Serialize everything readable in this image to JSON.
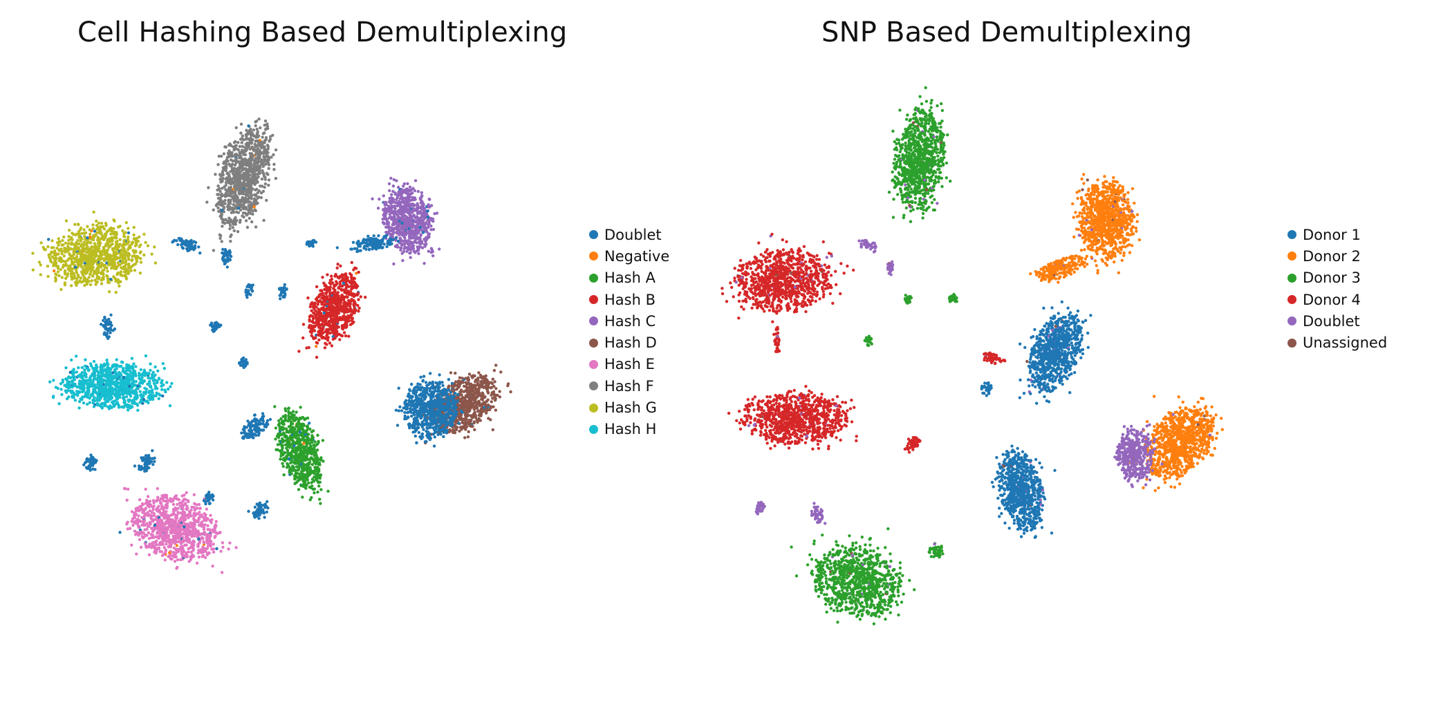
{
  "chart_data": [
    {
      "type": "scatter",
      "title": "Cell Hashing Based Demultiplexing",
      "xlabel": "",
      "ylabel": "",
      "axes_visible": false,
      "grid": false,
      "legend_position": "right",
      "legend": [
        {
          "name": "Doublet",
          "color": "#1f77b4"
        },
        {
          "name": "Negative",
          "color": "#ff7f0e"
        },
        {
          "name": "Hash A",
          "color": "#2ca02c"
        },
        {
          "name": "Hash B",
          "color": "#d62728"
        },
        {
          "name": "Hash C",
          "color": "#9467bd"
        },
        {
          "name": "Hash D",
          "color": "#8c564b"
        },
        {
          "name": "Hash E",
          "color": "#e377c2"
        },
        {
          "name": "Hash F",
          "color": "#7f7f7f"
        },
        {
          "name": "Hash G",
          "color": "#bcbd22"
        },
        {
          "name": "Hash H",
          "color": "#17becf"
        }
      ],
      "clusters": [
        {
          "label": "Hash F",
          "center": [
            0.38,
            0.16
          ],
          "spread": [
            0.04,
            0.085
          ],
          "tilt": 15
        },
        {
          "label": "Hash C",
          "center": [
            0.67,
            0.23
          ],
          "spread": [
            0.042,
            0.055
          ],
          "tilt": -10
        },
        {
          "label": "Hash G",
          "center": [
            0.12,
            0.29
          ],
          "spread": [
            0.08,
            0.048
          ],
          "tilt": -8
        },
        {
          "label": "Hash B",
          "center": [
            0.54,
            0.38
          ],
          "spread": [
            0.036,
            0.06
          ],
          "tilt": 25
        },
        {
          "label": "Hash H",
          "center": [
            0.15,
            0.51
          ],
          "spread": [
            0.085,
            0.037
          ],
          "tilt": 2
        },
        {
          "label": "Hash D",
          "center": [
            0.77,
            0.54
          ],
          "spread": [
            0.04,
            0.06
          ],
          "tilt": 55
        },
        {
          "label": "Hash A",
          "center": [
            0.48,
            0.62
          ],
          "spread": [
            0.032,
            0.065
          ],
          "tilt": -20
        },
        {
          "label": "Hash E",
          "center": [
            0.26,
            0.75
          ],
          "spread": [
            0.075,
            0.05
          ],
          "tilt": 20
        },
        {
          "label": "Doublet",
          "center": [
            0.28,
            0.27
          ],
          "spread": [
            0.02,
            0.01
          ],
          "tilt": 20
        },
        {
          "label": "Doublet",
          "center": [
            0.35,
            0.29
          ],
          "spread": [
            0.008,
            0.016
          ],
          "tilt": 0
        },
        {
          "label": "Doublet",
          "center": [
            0.14,
            0.41
          ],
          "spread": [
            0.008,
            0.02
          ],
          "tilt": 0
        },
        {
          "label": "Doublet",
          "center": [
            0.11,
            0.64
          ],
          "spread": [
            0.012,
            0.012
          ],
          "tilt": 0
        },
        {
          "label": "Doublet",
          "center": [
            0.21,
            0.64
          ],
          "spread": [
            0.012,
            0.016
          ],
          "tilt": 40
        },
        {
          "label": "Doublet",
          "center": [
            0.71,
            0.55
          ],
          "spread": [
            0.045,
            0.045
          ],
          "tilt": 0
        },
        {
          "label": "Doublet",
          "center": [
            0.4,
            0.58
          ],
          "spread": [
            0.015,
            0.025
          ],
          "tilt": 50
        },
        {
          "label": "Doublet",
          "center": [
            0.41,
            0.72
          ],
          "spread": [
            0.012,
            0.015
          ],
          "tilt": 40
        },
        {
          "label": "Doublet",
          "center": [
            0.61,
            0.27
          ],
          "spread": [
            0.04,
            0.01
          ],
          "tilt": -10
        },
        {
          "label": "Doublet",
          "center": [
            0.45,
            0.35
          ],
          "spread": [
            0.008,
            0.012
          ],
          "tilt": 0
        },
        {
          "label": "Doublet",
          "center": [
            0.39,
            0.35
          ],
          "spread": [
            0.006,
            0.012
          ],
          "tilt": 20
        },
        {
          "label": "Doublet",
          "center": [
            0.33,
            0.41
          ],
          "spread": [
            0.008,
            0.008
          ],
          "tilt": 0
        },
        {
          "label": "Doublet",
          "center": [
            0.38,
            0.47
          ],
          "spread": [
            0.008,
            0.008
          ],
          "tilt": 0
        },
        {
          "label": "Doublet",
          "center": [
            0.32,
            0.7
          ],
          "spread": [
            0.012,
            0.008
          ],
          "tilt": -40
        },
        {
          "label": "Doublet",
          "center": [
            0.5,
            0.27
          ],
          "spread": [
            0.008,
            0.006
          ],
          "tilt": 0
        }
      ]
    },
    {
      "type": "scatter",
      "title": "SNP Based Demultiplexing",
      "xlabel": "",
      "ylabel": "",
      "axes_visible": false,
      "grid": false,
      "legend_position": "right",
      "legend": [
        {
          "name": "Donor 1",
          "color": "#1f77b4"
        },
        {
          "name": "Donor 2",
          "color": "#ff7f0e"
        },
        {
          "name": "Donor 3",
          "color": "#2ca02c"
        },
        {
          "name": "Donor 4",
          "color": "#d62728"
        },
        {
          "name": "Doublet",
          "color": "#9467bd"
        },
        {
          "name": "Unassigned",
          "color": "#8c564b"
        }
      ],
      "clusters": [
        {
          "label": "Donor 3",
          "center": [
            0.35,
            0.14
          ],
          "spread": [
            0.042,
            0.08
          ],
          "tilt": 8
        },
        {
          "label": "Donor 2",
          "center": [
            0.68,
            0.24
          ],
          "spread": [
            0.046,
            0.062
          ],
          "tilt": -5
        },
        {
          "label": "Donor 4",
          "center": [
            0.11,
            0.34
          ],
          "spread": [
            0.085,
            0.05
          ],
          "tilt": -5
        },
        {
          "label": "Donor 1",
          "center": [
            0.59,
            0.46
          ],
          "spread": [
            0.04,
            0.065
          ],
          "tilt": 25
        },
        {
          "label": "Donor 4",
          "center": [
            0.13,
            0.57
          ],
          "spread": [
            0.09,
            0.04
          ],
          "tilt": 0
        },
        {
          "label": "Donor 2",
          "center": [
            0.81,
            0.61
          ],
          "spread": [
            0.048,
            0.065
          ],
          "tilt": 40
        },
        {
          "label": "Donor 1",
          "center": [
            0.53,
            0.69
          ],
          "spread": [
            0.036,
            0.066
          ],
          "tilt": -15
        },
        {
          "label": "Donor 3",
          "center": [
            0.24,
            0.84
          ],
          "spread": [
            0.076,
            0.055
          ],
          "tilt": 20
        },
        {
          "label": "Donor 4",
          "center": [
            0.1,
            0.44
          ],
          "spread": [
            0.006,
            0.02
          ],
          "tilt": 0
        },
        {
          "label": "Doublet",
          "center": [
            0.26,
            0.28
          ],
          "spread": [
            0.015,
            0.008
          ],
          "tilt": 20
        },
        {
          "label": "Donor 3",
          "center": [
            0.33,
            0.37
          ],
          "spread": [
            0.006,
            0.008
          ],
          "tilt": 0
        },
        {
          "label": "Donor 3",
          "center": [
            0.41,
            0.37
          ],
          "spread": [
            0.008,
            0.008
          ],
          "tilt": 0
        },
        {
          "label": "Donor 3",
          "center": [
            0.26,
            0.44
          ],
          "spread": [
            0.006,
            0.008
          ],
          "tilt": 0
        },
        {
          "label": "Doublet",
          "center": [
            0.3,
            0.32
          ],
          "spread": [
            0.005,
            0.01
          ],
          "tilt": 0
        },
        {
          "label": "Donor 4",
          "center": [
            0.48,
            0.47
          ],
          "spread": [
            0.02,
            0.008
          ],
          "tilt": 20
        },
        {
          "label": "Donor 4",
          "center": [
            0.34,
            0.61
          ],
          "spread": [
            0.01,
            0.015
          ],
          "tilt": 40
        },
        {
          "label": "Doublet",
          "center": [
            0.07,
            0.72
          ],
          "spread": [
            0.008,
            0.012
          ],
          "tilt": 0
        },
        {
          "label": "Doublet",
          "center": [
            0.17,
            0.73
          ],
          "spread": [
            0.01,
            0.014
          ],
          "tilt": 0
        },
        {
          "label": "Donor 3",
          "center": [
            0.38,
            0.79
          ],
          "spread": [
            0.012,
            0.012
          ],
          "tilt": -40
        },
        {
          "label": "Donor 2",
          "center": [
            0.6,
            0.32
          ],
          "spread": [
            0.045,
            0.015
          ],
          "tilt": -20
        },
        {
          "label": "Doublet",
          "center": [
            0.73,
            0.63
          ],
          "spread": [
            0.03,
            0.04
          ],
          "tilt": 0
        },
        {
          "label": "Donor 1",
          "center": [
            0.47,
            0.52
          ],
          "spread": [
            0.01,
            0.01
          ],
          "tilt": 0
        }
      ]
    }
  ]
}
